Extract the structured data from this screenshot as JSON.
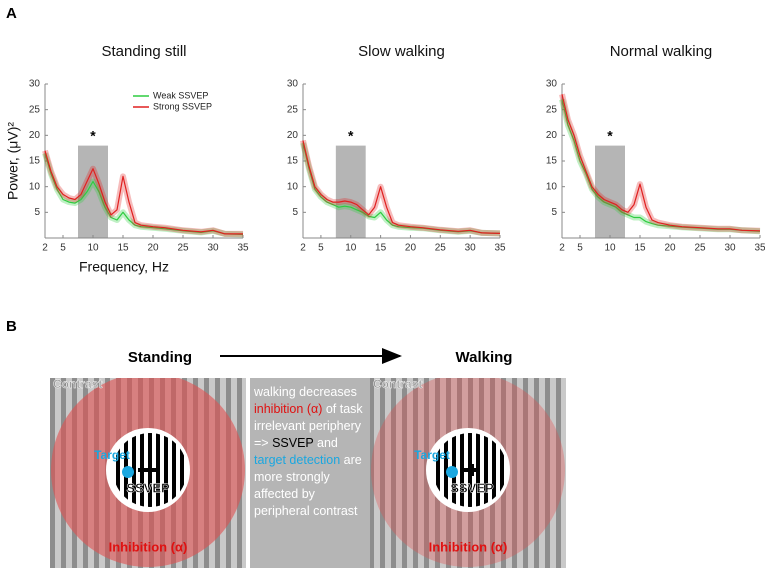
{
  "panel_labels": [
    "A",
    "B"
  ],
  "chart_data": [
    {
      "type": "line",
      "title": "Standing still",
      "ylabel": "Power, (μV)²",
      "xlabel": "Frequency, Hz",
      "x": [
        2,
        3,
        4,
        5,
        6,
        7,
        8,
        9,
        10,
        11,
        12,
        13,
        14,
        15,
        16,
        17,
        18,
        20,
        22,
        25,
        28,
        30,
        32,
        35
      ],
      "series": [
        {
          "name": "Weak SSVEP",
          "color": "#2ecc40",
          "values": [
            16.5,
            12.5,
            9.5,
            7.5,
            7,
            6.8,
            7.5,
            9,
            11,
            9,
            6,
            4,
            3.5,
            5,
            3.5,
            2.5,
            2.2,
            2,
            1.8,
            1.4,
            1.1,
            1.4,
            0.8,
            0.7
          ]
        },
        {
          "name": "Strong SSVEP",
          "color": "#e02020",
          "values": [
            17,
            13,
            10,
            8.5,
            7.8,
            7.5,
            8.5,
            11,
            13.5,
            10.5,
            7,
            4.5,
            5.5,
            12,
            7,
            3,
            2.5,
            2.2,
            2,
            1.5,
            1.2,
            1.5,
            0.8,
            0.8
          ]
        }
      ],
      "xlim": [
        2,
        35
      ],
      "xticks": [
        2,
        5,
        10,
        15,
        20,
        25,
        30,
        35
      ],
      "ylim": [
        0,
        30
      ],
      "yticks": [
        5,
        10,
        15,
        20,
        25,
        30
      ],
      "highlight": {
        "x": [
          7.5,
          12.5
        ],
        "y": [
          0,
          18
        ],
        "label": "*"
      },
      "legend": "upper right"
    },
    {
      "type": "line",
      "title": "Slow walking",
      "x": [
        2,
        3,
        4,
        5,
        6,
        7,
        8,
        9,
        10,
        11,
        12,
        13,
        14,
        15,
        16,
        17,
        18,
        20,
        22,
        25,
        28,
        30,
        32,
        35
      ],
      "series": [
        {
          "color": "#2ecc40",
          "values": [
            18.5,
            13.5,
            9.5,
            8,
            7,
            6.5,
            6,
            6.2,
            6,
            5.5,
            5,
            4.2,
            4,
            5,
            3.5,
            2.5,
            2.2,
            2,
            1.9,
            1.5,
            1.2,
            1.4,
            1,
            0.9
          ]
        },
        {
          "color": "#e02020",
          "values": [
            19,
            14,
            10,
            8.5,
            7.5,
            7,
            7,
            7.2,
            7,
            6.5,
            5.5,
            4.5,
            6,
            10,
            6,
            3,
            2.5,
            2.2,
            2,
            1.6,
            1.3,
            1.5,
            1,
            0.9
          ]
        }
      ],
      "xlim": [
        2,
        35
      ],
      "xticks": [
        2,
        5,
        10,
        15,
        20,
        25,
        30,
        35
      ],
      "ylim": [
        0,
        30
      ],
      "yticks": [
        5,
        10,
        15,
        20,
        25,
        30
      ],
      "highlight": {
        "x": [
          7.5,
          12.5
        ],
        "y": [
          0,
          18
        ],
        "label": "*"
      }
    },
    {
      "type": "line",
      "title": "Normal walking",
      "x": [
        2,
        3,
        4,
        5,
        6,
        7,
        8,
        9,
        10,
        11,
        12,
        13,
        14,
        15,
        16,
        17,
        18,
        20,
        22,
        25,
        28,
        30,
        32,
        35
      ],
      "series": [
        {
          "color": "#2ecc40",
          "values": [
            27,
            22,
            19,
            15,
            12.5,
            9.5,
            8,
            7,
            6.5,
            6,
            5,
            4.5,
            4,
            4,
            3.2,
            2.8,
            2.5,
            2.3,
            2.1,
            1.9,
            1.7,
            1.7,
            1.5,
            1.3
          ]
        },
        {
          "color": "#e02020",
          "values": [
            28,
            23,
            20,
            16,
            13,
            10,
            8.5,
            7.5,
            7,
            6.5,
            5.5,
            5,
            6.5,
            10.5,
            6,
            3.5,
            3,
            2.5,
            2.2,
            2,
            1.8,
            1.8,
            1.5,
            1.4
          ]
        }
      ],
      "xlim": [
        2,
        35
      ],
      "xticks": [
        2,
        5,
        10,
        15,
        20,
        25,
        30,
        35
      ],
      "ylim": [
        0,
        30
      ],
      "yticks": [
        5,
        10,
        15,
        20,
        25,
        30
      ],
      "highlight": {
        "x": [
          7.5,
          12.5
        ],
        "y": [
          0,
          18
        ],
        "label": "*"
      }
    }
  ],
  "panel_b": {
    "left_title": "Standing",
    "right_title": "Walking",
    "left": {
      "contrast": "Contrast",
      "target": "Target",
      "ssvep": "SSVEP",
      "inhibition": "Inhibition (α)"
    },
    "right": {
      "contrast": "Contrast",
      "target": "Target",
      "ssvep": "SSVEP",
      "inhibition": "Inhibition (α)"
    },
    "explanation": [
      "walking decreases ",
      "inhibition (α)",
      " of task irrelevant periphery => ",
      "SSVEP",
      " and ",
      "target detection",
      " are more strongly affected by peripheral contrast"
    ]
  }
}
